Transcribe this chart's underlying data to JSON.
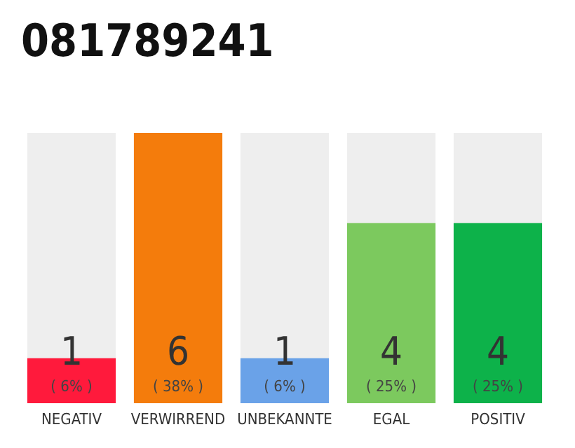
{
  "chart_data": {
    "type": "bar",
    "title": "081789241",
    "categories": [
      "NEGATIV",
      "VERWIRREND",
      "UNBEKANNTE",
      "EGAL",
      "POSITIV"
    ],
    "values": [
      1,
      6,
      1,
      4,
      4
    ],
    "colors": [
      "#ff1a3c",
      "#f47c0c",
      "#6aa2e8",
      "#7cc95e",
      "#0db24a"
    ],
    "value_labels": [
      "1\n( 6% )",
      "6\n( 38% )",
      "1\n( 6% )",
      "4\n( 25% )",
      "4\n( 25% )"
    ],
    "ylim": [
      0,
      6
    ],
    "tick_labels": "x",
    "grid": false
  }
}
